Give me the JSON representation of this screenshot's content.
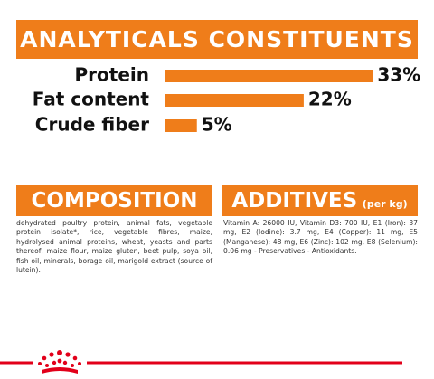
{
  "chart_data": {
    "type": "bar",
    "orientation": "horizontal",
    "title": "ANALYTICALS CONSTITUENTS",
    "categories": [
      "Protein",
      "Fat content",
      "Crude fiber"
    ],
    "values": [
      33,
      22,
      5
    ],
    "value_labels": [
      "33%",
      "22%",
      "5%"
    ],
    "color": "#ef7d1a"
  },
  "composition": {
    "title": "COMPOSITION",
    "text": "dehydrated poultry protein, animal fats, vegetable protein isolate*, rice, vegetable fibres, maize, hydrolysed animal proteins, wheat, yeasts and parts thereof, maize flour, maize gluten, beet pulp, soya oil, fish oil, minerals, borage oil, marigold extract (source of lutein)."
  },
  "additives": {
    "title": "ADDITIVES",
    "unit": "(per kg)",
    "text": "Vitamin A: 26000 IU, Vitamin D3: 700 IU, E1 (Iron): 37 mg, E2 (Iodine): 3.7 mg, E4 (Copper): 11 mg, E5 (Manganese): 48 mg, E6 (Zinc): 102 mg, E8 (Selenium): 0.06 mg - Preservatives - Antioxidants."
  }
}
